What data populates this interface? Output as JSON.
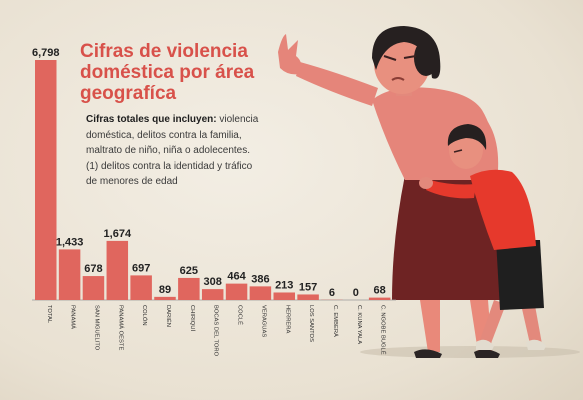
{
  "title": "Cifras de violencia doméstica por área geografíca",
  "description": {
    "lead": "Cifras totales que incluyen:",
    "body": "violencia doméstica, delitos contra la familia, maltrato de niño, niña o adolecentes. (1) delitos contra la identidad  y tráfico de menores de edad"
  },
  "colors": {
    "bar": "#e0665e",
    "title": "#d8514a",
    "background": "#ede6d8"
  },
  "illustration": {
    "icon": "woman-protecting-child-illustration"
  },
  "chart_data": {
    "type": "bar",
    "title": "Cifras de violencia doméstica por área geografíca",
    "categories": [
      "TOTAL",
      "PANAMÁ",
      "SAN MIGUELITO",
      "PANAMÁ OESTE",
      "COLÓN",
      "DARIÉN",
      "CHIRIQUÍ",
      "BOCAS DEL TORO",
      "COCLÉ",
      "VERAGUAS",
      "HERRERA",
      "LOS SANTOS",
      "C. EMBERÁ",
      "C. KUNA YALA",
      "C. NGOBE BUGLÉ"
    ],
    "values": [
      6798,
      1433,
      678,
      1674,
      697,
      89,
      625,
      308,
      464,
      386,
      213,
      157,
      6,
      0,
      68
    ],
    "value_labels": [
      "6,798",
      "1,433",
      "678",
      "1,674",
      "697",
      "89",
      "625",
      "308",
      "464",
      "386",
      "213",
      "157",
      "6",
      "0",
      "68"
    ],
    "ylim": [
      0,
      6798
    ],
    "grid": false,
    "legend": "none"
  }
}
